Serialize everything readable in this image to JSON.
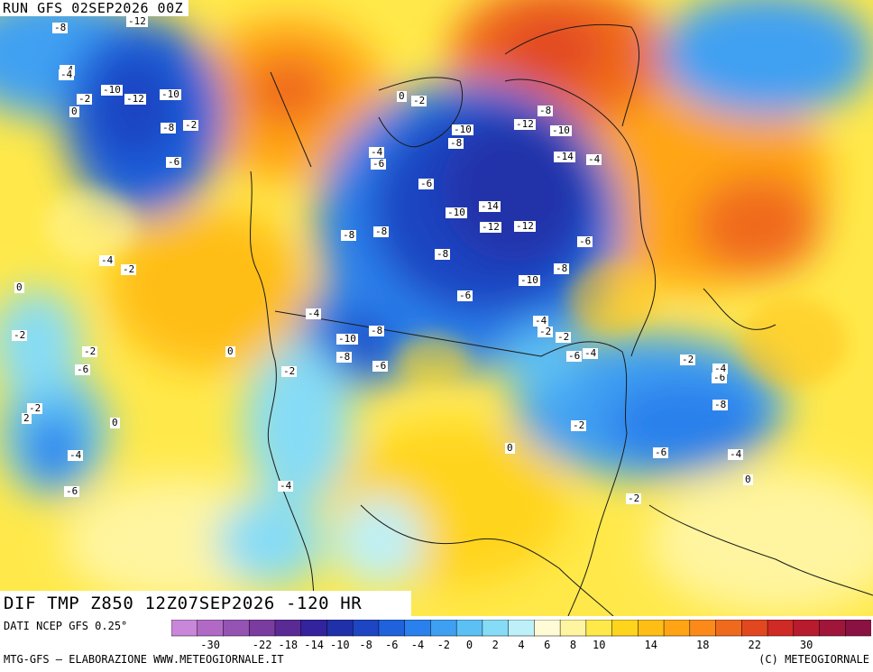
{
  "header": {
    "run_title": "RUN GFS 02SEP2026 00Z"
  },
  "map": {
    "title": "DIF TMP Z850 12Z07SEP2026 -120 HR",
    "variable": "temperature anomaly at 850 hPa",
    "labels": [
      {
        "text": "-8"
      },
      {
        "text": "-12"
      },
      {
        "text": "-4"
      },
      {
        "text": "-2"
      },
      {
        "text": "-8"
      },
      {
        "text": "-6"
      },
      {
        "text": "-4"
      },
      {
        "text": "-10"
      },
      {
        "text": "-12"
      },
      {
        "text": "-10"
      },
      {
        "text": "-2"
      },
      {
        "text": "0"
      },
      {
        "text": "-6"
      },
      {
        "text": "0"
      },
      {
        "text": "-2"
      },
      {
        "text": "-4"
      },
      {
        "text": "-6"
      },
      {
        "text": "-10"
      },
      {
        "text": "-12"
      },
      {
        "text": "-10"
      },
      {
        "text": "-8"
      },
      {
        "text": "-8"
      },
      {
        "text": "-14"
      },
      {
        "text": "-4"
      },
      {
        "text": "-14"
      },
      {
        "text": "-10"
      },
      {
        "text": "-12"
      },
      {
        "text": "-12"
      },
      {
        "text": "-8"
      },
      {
        "text": "-8"
      },
      {
        "text": "-8"
      },
      {
        "text": "-6"
      },
      {
        "text": "-8"
      },
      {
        "text": "-10"
      },
      {
        "text": "-6"
      },
      {
        "text": "-4"
      },
      {
        "text": "-2"
      },
      {
        "text": "-10"
      },
      {
        "text": "-8"
      },
      {
        "text": "-8"
      },
      {
        "text": "-6"
      },
      {
        "text": "-4"
      },
      {
        "text": "-2"
      },
      {
        "text": "-4"
      },
      {
        "text": "-6"
      },
      {
        "text": "-8"
      },
      {
        "text": "-6"
      },
      {
        "text": "-4"
      },
      {
        "text": "-2"
      },
      {
        "text": "-6"
      },
      {
        "text": "-2"
      },
      {
        "text": "0"
      },
      {
        "text": "0"
      },
      {
        "text": "-2"
      },
      {
        "text": "-4"
      },
      {
        "text": "-2"
      },
      {
        "text": "-6"
      },
      {
        "text": "-4"
      },
      {
        "text": "0"
      },
      {
        "text": "2"
      },
      {
        "text": "-2"
      },
      {
        "text": "-2"
      },
      {
        "text": "-2"
      },
      {
        "text": "-4"
      },
      {
        "text": "0"
      },
      {
        "text": "-6"
      },
      {
        "text": "-4"
      },
      {
        "text": "0"
      },
      {
        "text": "-2"
      }
    ]
  },
  "legend": {
    "colors": [
      "#c887d8",
      "#b06ac6",
      "#9553b3",
      "#7a3c9e",
      "#5a2a95",
      "#33239c",
      "#2030a8",
      "#1e45c2",
      "#1f62dc",
      "#2a80ec",
      "#3fa0f2",
      "#5cc0f5",
      "#86dcf6",
      "#bdf0f8",
      "#fffbd6",
      "#fff5a0",
      "#ffe94a",
      "#ffd41c",
      "#ffbe16",
      "#ffa515",
      "#fb8a1a",
      "#f06a1d",
      "#e24820",
      "#cf2a25",
      "#b81a2e",
      "#a0153a",
      "#8a1242"
    ],
    "tick_labels": [
      "-30",
      "-22",
      "-18",
      "-14",
      "-10",
      "-8",
      "-6",
      "-4",
      "-2",
      "0",
      "2",
      "4",
      "6",
      "8",
      "10",
      "14",
      "18",
      "22",
      "30"
    ]
  },
  "footer": {
    "source": "DATI NCEP GFS 0.25°",
    "credit": "MTG-GFS – ELABORAZIONE WWW.METEOGIORNALE.IT",
    "copyright": "(C) METEOGIORNALE"
  }
}
